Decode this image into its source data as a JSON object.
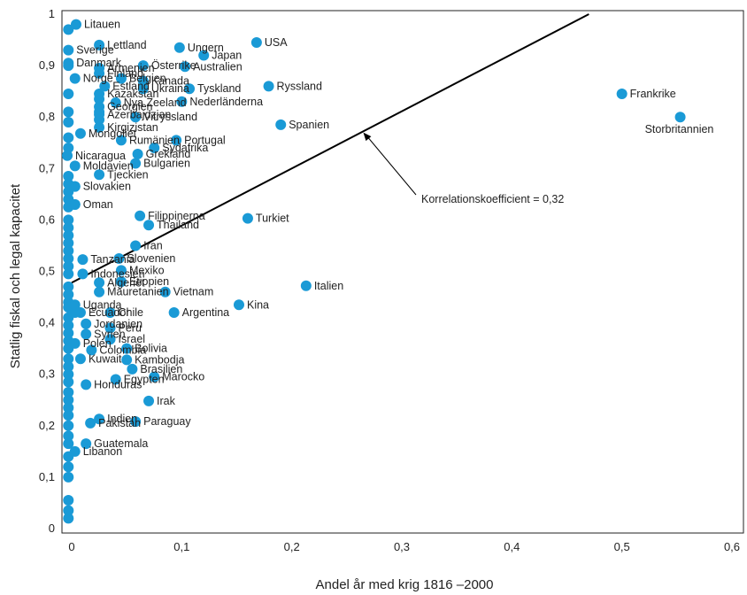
{
  "chart_data": {
    "type": "scatter",
    "xlabel": "Andel år med krig 1816 –2000",
    "ylabel": "Statlig fiskal och legal kapacitet",
    "xlim": [
      0,
      0.6
    ],
    "ylim": [
      0,
      1
    ],
    "xticks": [
      "0",
      "0,1",
      "0,2",
      "0,3",
      "0,4",
      "0,5",
      "0,6"
    ],
    "yticks": [
      "0",
      "0,1",
      "0,2",
      "0,3",
      "0,4",
      "0,5",
      "0,6",
      "0,7",
      "0,8",
      "0,9",
      "1"
    ],
    "marker_color": "#1a9ad6",
    "line_color": "#000000",
    "trend_line": {
      "x1": 0,
      "y1": 0.478,
      "x2": 0.47,
      "y2": 1.0
    },
    "annotation": {
      "text": "Korrelationskoefficient = 0,32",
      "target_x": 0.265,
      "target_y": 0.77
    },
    "labeled_points": [
      {
        "name": "Litauen",
        "x": 0.004,
        "y": 0.98
      },
      {
        "name": "Sverige",
        "x": -0.003,
        "y": 0.93
      },
      {
        "name": "Lettland",
        "x": 0.025,
        "y": 0.94
      },
      {
        "name": "Ungern",
        "x": 0.098,
        "y": 0.935
      },
      {
        "name": "USA",
        "x": 0.168,
        "y": 0.945
      },
      {
        "name": "Japan",
        "x": 0.12,
        "y": 0.92
      },
      {
        "name": "Danmark",
        "x": -0.003,
        "y": 0.905
      },
      {
        "name": "Armenien",
        "x": 0.025,
        "y": 0.895
      },
      {
        "name": "Österrike",
        "x": 0.065,
        "y": 0.9
      },
      {
        "name": "Australien",
        "x": 0.103,
        "y": 0.898
      },
      {
        "name": "Belgien",
        "x": 0.045,
        "y": 0.875
      },
      {
        "name": "Finland",
        "x": 0.025,
        "y": 0.885
      },
      {
        "name": "Kanada",
        "x": 0.065,
        "y": 0.87
      },
      {
        "name": "Norge",
        "x": 0.003,
        "y": 0.875
      },
      {
        "name": "Estland",
        "x": 0.03,
        "y": 0.86
      },
      {
        "name": "Ukraina",
        "x": 0.065,
        "y": 0.855
      },
      {
        "name": "Tyskland",
        "x": 0.107,
        "y": 0.855
      },
      {
        "name": "Ryssland",
        "x": 0.179,
        "y": 0.86
      },
      {
        "name": "Kazakstan",
        "x": 0.025,
        "y": 0.845
      },
      {
        "name": "Nya Zeeland",
        "x": 0.04,
        "y": 0.828
      },
      {
        "name": "Nederländerna",
        "x": 0.1,
        "y": 0.83
      },
      {
        "name": "Georgien",
        "x": 0.025,
        "y": 0.82
      },
      {
        "name": "Azerbajdzjan",
        "x": 0.025,
        "y": 0.805
      },
      {
        "name": "Vitryssland",
        "x": 0.058,
        "y": 0.8
      },
      {
        "name": "Kirgizistan",
        "x": 0.025,
        "y": 0.78
      },
      {
        "name": "Spanien",
        "x": 0.19,
        "y": 0.785
      },
      {
        "name": "Mongoliet",
        "x": 0.008,
        "y": 0.768
      },
      {
        "name": "Rumänien",
        "x": 0.045,
        "y": 0.755
      },
      {
        "name": "Portugal",
        "x": 0.095,
        "y": 0.755
      },
      {
        "name": "Sydafrika",
        "x": 0.075,
        "y": 0.74
      },
      {
        "name": "Nicaragua",
        "x": -0.004,
        "y": 0.725
      },
      {
        "name": "Grekland",
        "x": 0.06,
        "y": 0.728
      },
      {
        "name": "Moldavien",
        "x": 0.003,
        "y": 0.705
      },
      {
        "name": "Bulgarien",
        "x": 0.058,
        "y": 0.71
      },
      {
        "name": "Tjeckien",
        "x": 0.025,
        "y": 0.688
      },
      {
        "name": "Slovakien",
        "x": 0.003,
        "y": 0.665
      },
      {
        "name": "Oman",
        "x": 0.003,
        "y": 0.63
      },
      {
        "name": "Filippinerna",
        "x": 0.062,
        "y": 0.608
      },
      {
        "name": "Thailand",
        "x": 0.07,
        "y": 0.59
      },
      {
        "name": "Turkiet",
        "x": 0.16,
        "y": 0.603
      },
      {
        "name": "Iran",
        "x": 0.058,
        "y": 0.55
      },
      {
        "name": "Tanzania",
        "x": 0.01,
        "y": 0.523
      },
      {
        "name": "Slovenien",
        "x": 0.043,
        "y": 0.525
      },
      {
        "name": "Indonesien",
        "x": 0.01,
        "y": 0.495
      },
      {
        "name": "Mexiko",
        "x": 0.045,
        "y": 0.502
      },
      {
        "name": "Algeriet",
        "x": 0.025,
        "y": 0.478
      },
      {
        "name": "Etiopien",
        "x": 0.045,
        "y": 0.48
      },
      {
        "name": "Mauretanien",
        "x": 0.025,
        "y": 0.46
      },
      {
        "name": "Vietnam",
        "x": 0.085,
        "y": 0.46
      },
      {
        "name": "Italien",
        "x": 0.213,
        "y": 0.472
      },
      {
        "name": "Uganda",
        "x": 0.003,
        "y": 0.435
      },
      {
        "name": "Kina",
        "x": 0.152,
        "y": 0.435
      },
      {
        "name": "Ecuador",
        "x": 0.008,
        "y": 0.42
      },
      {
        "name": "Chile",
        "x": 0.035,
        "y": 0.42
      },
      {
        "name": "Argentina",
        "x": 0.093,
        "y": 0.42
      },
      {
        "name": "Jordanien",
        "x": 0.013,
        "y": 0.398
      },
      {
        "name": "Peru",
        "x": 0.035,
        "y": 0.39
      },
      {
        "name": "Syrien",
        "x": 0.013,
        "y": 0.378
      },
      {
        "name": "Polen",
        "x": 0.003,
        "y": 0.36
      },
      {
        "name": "Israel",
        "x": 0.035,
        "y": 0.368
      },
      {
        "name": "Colombia",
        "x": 0.018,
        "y": 0.347
      },
      {
        "name": "Bolivia",
        "x": 0.05,
        "y": 0.35
      },
      {
        "name": "Kuwait",
        "x": 0.008,
        "y": 0.33
      },
      {
        "name": "Kambodja",
        "x": 0.05,
        "y": 0.328
      },
      {
        "name": "Brasilien",
        "x": 0.055,
        "y": 0.31
      },
      {
        "name": "Egypten",
        "x": 0.04,
        "y": 0.29
      },
      {
        "name": "Marocko",
        "x": 0.075,
        "y": 0.295
      },
      {
        "name": "Honduras",
        "x": 0.013,
        "y": 0.28
      },
      {
        "name": "Irak",
        "x": 0.07,
        "y": 0.248
      },
      {
        "name": "Indien",
        "x": 0.025,
        "y": 0.213
      },
      {
        "name": "Pakistan",
        "x": 0.017,
        "y": 0.205
      },
      {
        "name": "Paraguay",
        "x": 0.058,
        "y": 0.208
      },
      {
        "name": "Guatemala",
        "x": 0.013,
        "y": 0.165
      },
      {
        "name": "Libanon",
        "x": 0.003,
        "y": 0.15
      },
      {
        "name": "Frankrike",
        "x": 0.5,
        "y": 0.845
      },
      {
        "name": "Storbritannien",
        "x": 0.553,
        "y": 0.8
      }
    ],
    "unlabeled_points": [
      {
        "x": -0.003,
        "y": 0.97
      },
      {
        "x": -0.003,
        "y": 0.9
      },
      {
        "x": -0.003,
        "y": 0.845
      },
      {
        "x": -0.003,
        "y": 0.81
      },
      {
        "x": -0.003,
        "y": 0.79
      },
      {
        "x": -0.003,
        "y": 0.76
      },
      {
        "x": -0.003,
        "y": 0.74
      },
      {
        "x": -0.003,
        "y": 0.685
      },
      {
        "x": -0.003,
        "y": 0.67
      },
      {
        "x": -0.003,
        "y": 0.655
      },
      {
        "x": -0.003,
        "y": 0.64
      },
      {
        "x": -0.003,
        "y": 0.625
      },
      {
        "x": -0.003,
        "y": 0.6
      },
      {
        "x": -0.003,
        "y": 0.585
      },
      {
        "x": -0.003,
        "y": 0.57
      },
      {
        "x": -0.003,
        "y": 0.555
      },
      {
        "x": -0.003,
        "y": 0.54
      },
      {
        "x": -0.003,
        "y": 0.525
      },
      {
        "x": -0.003,
        "y": 0.51
      },
      {
        "x": -0.003,
        "y": 0.495
      },
      {
        "x": -0.003,
        "y": 0.47
      },
      {
        "x": -0.003,
        "y": 0.455
      },
      {
        "x": -0.003,
        "y": 0.44
      },
      {
        "x": -0.003,
        "y": 0.43
      },
      {
        "x": -0.003,
        "y": 0.41
      },
      {
        "x": -0.003,
        "y": 0.395
      },
      {
        "x": -0.003,
        "y": 0.38
      },
      {
        "x": -0.003,
        "y": 0.365
      },
      {
        "x": -0.003,
        "y": 0.35
      },
      {
        "x": -0.003,
        "y": 0.33
      },
      {
        "x": -0.003,
        "y": 0.315
      },
      {
        "x": -0.003,
        "y": 0.3
      },
      {
        "x": -0.003,
        "y": 0.285
      },
      {
        "x": -0.003,
        "y": 0.265
      },
      {
        "x": -0.003,
        "y": 0.25
      },
      {
        "x": -0.003,
        "y": 0.235
      },
      {
        "x": -0.003,
        "y": 0.22
      },
      {
        "x": -0.003,
        "y": 0.2
      },
      {
        "x": -0.003,
        "y": 0.18
      },
      {
        "x": -0.003,
        "y": 0.165
      },
      {
        "x": -0.003,
        "y": 0.14
      },
      {
        "x": -0.003,
        "y": 0.12
      },
      {
        "x": -0.003,
        "y": 0.1
      },
      {
        "x": -0.003,
        "y": 0.055
      },
      {
        "x": -0.003,
        "y": 0.035
      },
      {
        "x": -0.003,
        "y": 0.02
      },
      {
        "x": 0.003,
        "y": 0.63
      },
      {
        "x": 0.003,
        "y": 0.665
      },
      {
        "x": 0.003,
        "y": 0.42
      },
      {
        "x": 0.025,
        "y": 0.81
      },
      {
        "x": 0.025,
        "y": 0.795
      },
      {
        "x": 0.025,
        "y": 0.835
      }
    ]
  }
}
